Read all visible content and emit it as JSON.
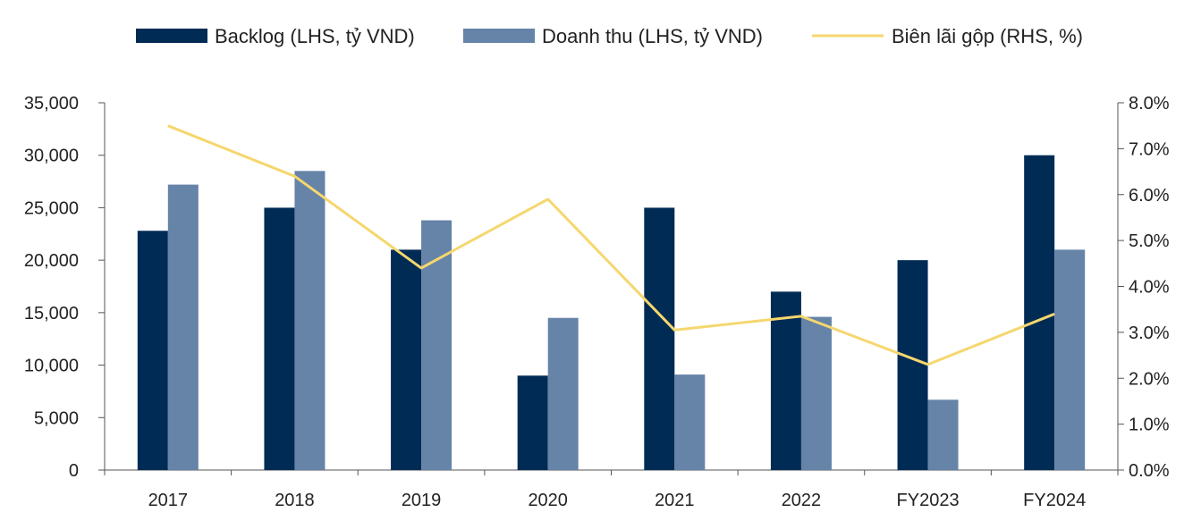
{
  "chart_data": {
    "type": "bar",
    "categories": [
      "2017",
      "2018",
      "2019",
      "2020",
      "2021",
      "2022",
      "FY2023",
      "FY2024"
    ],
    "series": [
      {
        "name": "Backlog (LHS, tỷ VND)",
        "kind": "bar",
        "axis": "left",
        "color": "#002b55",
        "values": [
          22800,
          25000,
          21000,
          9000,
          25000,
          17000,
          20000,
          30000
        ]
      },
      {
        "name": "Doanh thu (LHS, tỷ VND)",
        "kind": "bar",
        "axis": "left",
        "color": "#6683a8",
        "values": [
          27200,
          28500,
          23800,
          14500,
          9100,
          14600,
          6700,
          21000
        ]
      },
      {
        "name": "Biên lãi gộp (RHS, %)",
        "kind": "line",
        "axis": "right",
        "color": "#f5d76e",
        "values": [
          7.5,
          6.4,
          4.4,
          5.9,
          3.05,
          3.35,
          2.3,
          3.4
        ]
      }
    ],
    "left_axis": {
      "min": 0,
      "max": 35000,
      "step": 5000,
      "tick_labels": [
        "0",
        "5,000",
        "10,000",
        "15,000",
        "20,000",
        "25,000",
        "30,000",
        "35,000"
      ]
    },
    "right_axis": {
      "min": 0,
      "max": 8,
      "step": 1,
      "tick_labels": [
        "0.0%",
        "1.0%",
        "2.0%",
        "3.0%",
        "4.0%",
        "5.0%",
        "6.0%",
        "7.0%",
        "8.0%"
      ]
    },
    "legend_position": "top",
    "grid": false
  }
}
